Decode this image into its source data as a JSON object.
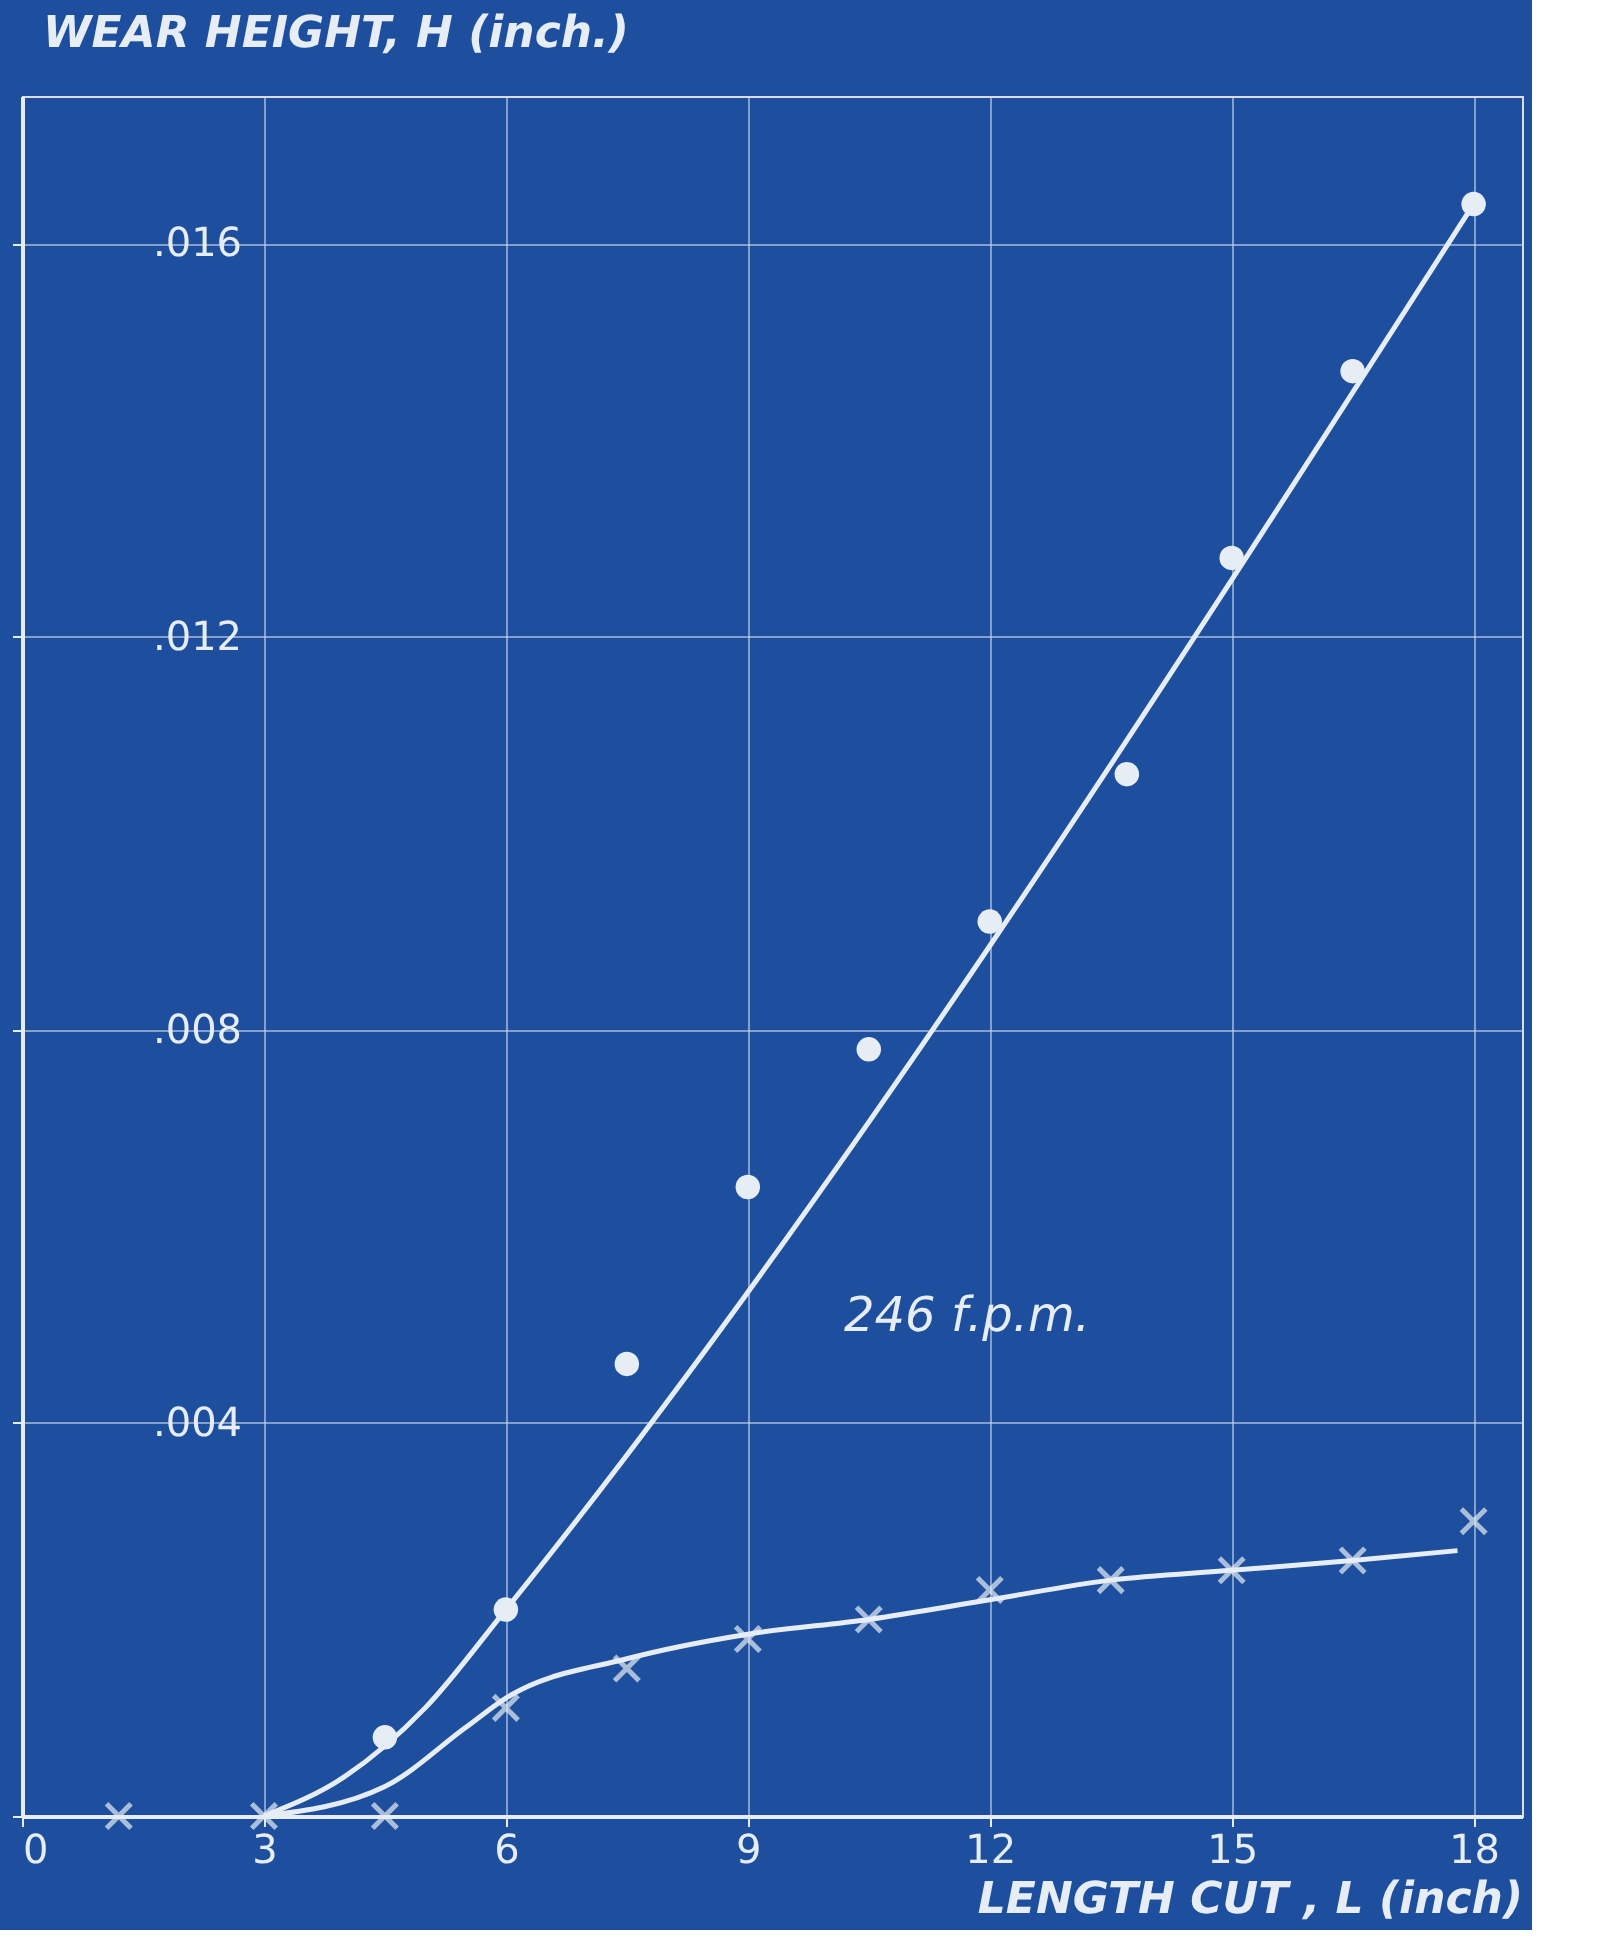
{
  "chart_data": {
    "type": "scatter",
    "xlabel": "LENGTH CUT , L (inch)",
    "ylabel": "WEAR HEIGHT, H (inch.)",
    "annotations": [
      "246 f.p.m."
    ],
    "xlim": [
      0,
      18.6
    ],
    "ylim": [
      0,
      0.0175
    ],
    "xticks": [
      0,
      3,
      6,
      9,
      12,
      15,
      18
    ],
    "yticks": [
      {
        "value": 0,
        "label": null
      },
      {
        "value": 0.004,
        "label": ".004"
      },
      {
        "value": 0.008,
        "label": ".008"
      },
      {
        "value": 0.012,
        "label": ".012"
      },
      {
        "value": 0.016,
        "label": ".016"
      }
    ],
    "grid": true,
    "series": [
      {
        "marker": "circle",
        "color": "#e6edf5",
        "x": [
          4.5,
          6,
          7.5,
          9,
          10.5,
          12,
          13.7,
          15,
          16.5,
          18
        ],
        "values": [
          0.0008,
          0.0021,
          0.0046,
          0.0064,
          0.0078,
          0.0091,
          0.0106,
          0.0128,
          0.0147,
          0.0164
        ]
      },
      {
        "marker": "cross",
        "color": "#e6edf5",
        "x": [
          1.2,
          3,
          4.5,
          6,
          7.5,
          9,
          10.5,
          12,
          13.5,
          15,
          16.5,
          18
        ],
        "values": [
          0,
          0,
          0,
          0.0011,
          0.0015,
          0.0018,
          0.002,
          0.0023,
          0.0024,
          0.0025,
          0.0026,
          0.003
        ]
      },
      {
        "type": "line",
        "line_style": "solid",
        "color": "#e6edf5",
        "x": [
          3,
          4,
          5,
          6,
          18
        ],
        "values": [
          0,
          0.0004,
          0.0011,
          0.0021,
          0.0164
        ]
      },
      {
        "type": "line",
        "line_style": "solid",
        "color": "#e6edf5",
        "x": [
          3,
          4.5,
          5.5,
          6,
          7.5,
          9,
          10.5,
          12,
          13.5,
          15,
          16.5,
          17.8
        ],
        "values": [
          0,
          0.0003,
          0.0009,
          0.0012,
          0.0016,
          0.00185,
          0.002,
          0.0022,
          0.0024,
          0.0025,
          0.0026,
          0.0027
        ]
      }
    ]
  }
}
